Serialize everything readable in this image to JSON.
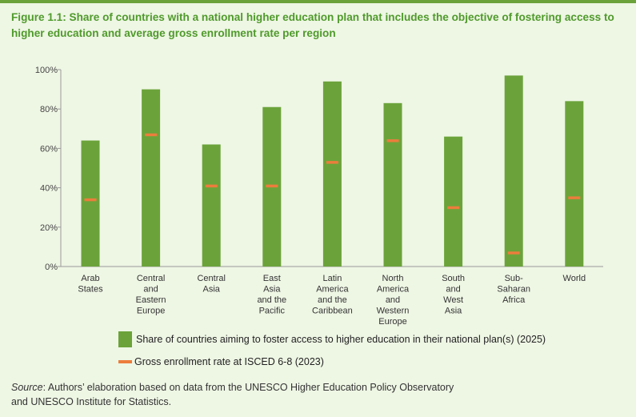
{
  "figure": {
    "title": "Figure 1.1: Share of countries with a national higher education plan that includes the objective of fostering access to higher education and average gross enrollment rate per region"
  },
  "legend": {
    "bar_label": "Share of countries aiming to foster access to higher education in their national plan(s) (2025)",
    "line_label": "Gross enrollment rate at ISCED 6-8 (2023)"
  },
  "source": {
    "label": "Source",
    "text": ": Authors’ elaboration based on data from the UNESCO Higher Education Policy Observatory",
    "text2": "and UNESCO Institute for Statistics."
  },
  "colors": {
    "bar": "#6ba33a",
    "marker": "#ec7d3c",
    "title": "#4f9a2b",
    "background": "#eef6e4"
  },
  "chart_data": {
    "type": "bar",
    "categories": [
      [
        "Arab",
        "States"
      ],
      [
        "Central",
        "and",
        "Eastern",
        "Europe"
      ],
      [
        "Central",
        "Asia"
      ],
      [
        "East",
        "Asia",
        "and the",
        "Pacific"
      ],
      [
        "Latin",
        "America",
        "and the",
        "Caribbean"
      ],
      [
        "North",
        "America",
        "and",
        "Western",
        "Europe"
      ],
      [
        "South",
        "and",
        "West",
        "Asia"
      ],
      [
        "Sub-",
        "Saharan",
        "Africa"
      ],
      [
        "World"
      ]
    ],
    "series": [
      {
        "name": "Share of countries aiming to foster access to higher education in their national plan(s) (2025)",
        "type": "bar",
        "values": [
          64,
          90,
          62,
          81,
          94,
          83,
          66,
          97,
          84
        ]
      },
      {
        "name": "Gross enrollment rate at ISCED 6-8 (2023)",
        "type": "marker",
        "values": [
          34,
          67,
          41,
          41,
          53,
          64,
          30,
          7,
          35
        ]
      }
    ],
    "yticks": [
      "0%",
      "20%",
      "40%",
      "60%",
      "80%",
      "100%"
    ],
    "ylim": [
      0,
      100
    ],
    "grid": false,
    "legend_position": "bottom"
  }
}
